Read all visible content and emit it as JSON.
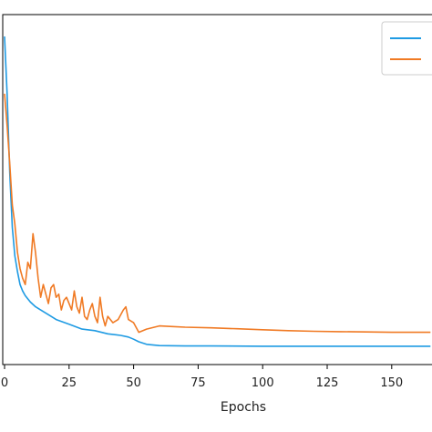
{
  "chart_data": {
    "type": "line",
    "title": "",
    "xlabel": "Epochs",
    "ylabel": "",
    "xlim": [
      0,
      165
    ],
    "ylim": [
      0,
      1.0
    ],
    "grid": false,
    "legend": {
      "placement": "top-right",
      "entries": [
        "",
        ""
      ]
    },
    "xticks": [
      0,
      25,
      50,
      75,
      100,
      125,
      150
    ],
    "xtick_labels": [
      "0",
      "25",
      "50",
      "75",
      "100",
      "125",
      "150"
    ],
    "series": [
      {
        "color": "#1f9be3",
        "x": [
          0,
          1,
          2,
          3,
          4,
          5,
          6,
          7,
          8,
          9,
          10,
          12,
          14,
          16,
          18,
          20,
          25,
          30,
          35,
          40,
          45,
          48,
          50,
          52,
          55,
          60,
          70,
          80,
          100,
          125,
          150,
          165
        ],
        "y": [
          0.98,
          0.8,
          0.55,
          0.38,
          0.29,
          0.24,
          0.2,
          0.18,
          0.165,
          0.155,
          0.145,
          0.13,
          0.12,
          0.11,
          0.1,
          0.09,
          0.075,
          0.06,
          0.055,
          0.045,
          0.04,
          0.035,
          0.028,
          0.02,
          0.012,
          0.008,
          0.007,
          0.007,
          0.006,
          0.006,
          0.006,
          0.006
        ]
      },
      {
        "color": "#f07a24",
        "x": [
          0,
          1,
          2,
          3,
          4,
          5,
          6,
          7,
          8,
          9,
          10,
          11,
          12,
          13,
          14,
          15,
          16,
          17,
          18,
          19,
          20,
          21,
          22,
          23,
          24,
          25,
          26,
          27,
          28,
          29,
          30,
          31,
          32,
          33,
          34,
          35,
          36,
          37,
          38,
          39,
          40,
          42,
          44,
          46,
          47,
          48,
          50,
          52,
          55,
          60,
          65,
          70,
          80,
          90,
          100,
          110,
          120,
          130,
          140,
          150,
          160,
          165
        ],
        "y": [
          0.8,
          0.7,
          0.58,
          0.45,
          0.39,
          0.3,
          0.25,
          0.22,
          0.2,
          0.27,
          0.25,
          0.36,
          0.3,
          0.22,
          0.16,
          0.2,
          0.17,
          0.14,
          0.19,
          0.2,
          0.16,
          0.17,
          0.12,
          0.15,
          0.16,
          0.14,
          0.12,
          0.18,
          0.13,
          0.11,
          0.16,
          0.1,
          0.09,
          0.12,
          0.14,
          0.1,
          0.08,
          0.16,
          0.1,
          0.07,
          0.1,
          0.08,
          0.09,
          0.12,
          0.13,
          0.09,
          0.08,
          0.05,
          0.06,
          0.07,
          0.068,
          0.066,
          0.064,
          0.061,
          0.058,
          0.055,
          0.053,
          0.052,
          0.051,
          0.05,
          0.05,
          0.05
        ]
      }
    ]
  }
}
